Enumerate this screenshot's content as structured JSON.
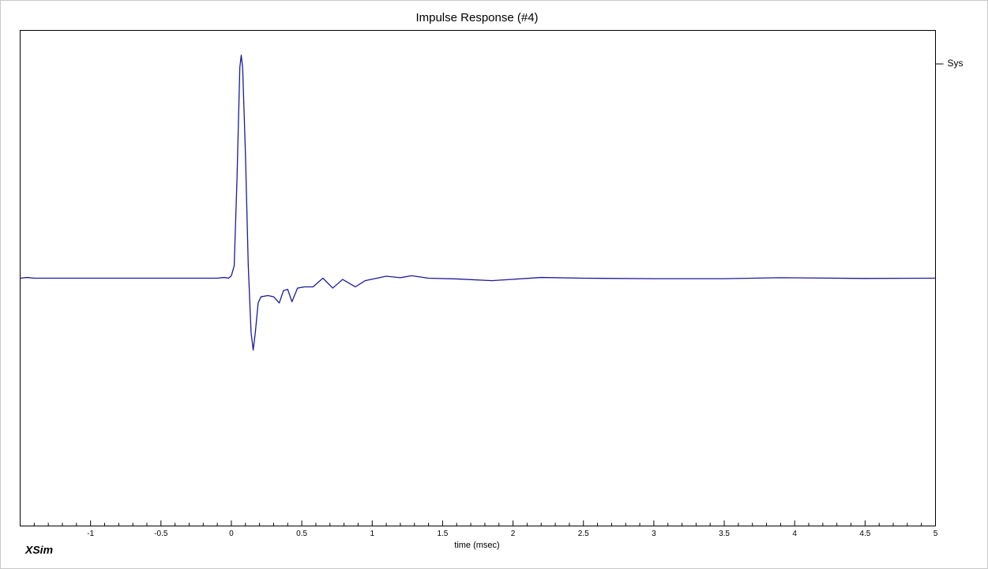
{
  "chart_data": {
    "type": "line",
    "title": "Impulse Response (#4)",
    "title_color": "#1a1a8c",
    "x_label": "time (msec)",
    "brand": "XSim",
    "brand_color": "#1f8a8a",
    "legend_position": "right",
    "x": [
      -1.5,
      -1.45,
      -1.4,
      -0.1,
      -0.05,
      -0.02,
      0.0,
      0.02,
      0.04,
      0.06,
      0.07,
      0.08,
      0.1,
      0.12,
      0.14,
      0.155,
      0.17,
      0.19,
      0.21,
      0.26,
      0.3,
      0.34,
      0.37,
      0.4,
      0.43,
      0.47,
      0.52,
      0.58,
      0.65,
      0.72,
      0.79,
      0.88,
      0.95,
      1.1,
      1.2,
      1.28,
      1.4,
      1.6,
      1.85,
      2.2,
      2.5,
      3.0,
      3.5,
      3.9,
      4.5,
      5.0
    ],
    "series": [
      {
        "name": "Sys",
        "color": "#1a1a9c",
        "values": [
          0,
          0.003,
          0,
          0,
          0.003,
          0,
          0.01,
          0.05,
          0.4,
          0.85,
          0.9,
          0.85,
          0.5,
          0.05,
          -0.22,
          -0.29,
          -0.22,
          -0.1,
          -0.075,
          -0.07,
          -0.075,
          -0.1,
          -0.05,
          -0.045,
          -0.095,
          -0.04,
          -0.035,
          -0.035,
          0.0,
          -0.04,
          -0.005,
          -0.035,
          -0.01,
          0.008,
          0.002,
          0.01,
          0.0,
          -0.003,
          -0.01,
          0.003,
          0.0,
          -0.002,
          -0.002,
          0.002,
          -0.001,
          0
        ]
      }
    ],
    "xlim": [
      -1.5,
      5
    ],
    "ylim": [
      -1,
      1
    ],
    "xticks": [
      -1,
      -0.5,
      0,
      0.5,
      1,
      1.5,
      2,
      2.5,
      3,
      3.5,
      4,
      4.5,
      5
    ],
    "xminorticks": [
      -1.4,
      -1.3,
      -1.2,
      -1.1,
      -0.9,
      -0.8,
      -0.7,
      -0.6,
      -0.4,
      -0.3,
      -0.2,
      -0.1,
      0.1,
      0.2,
      0.3,
      0.4,
      0.6,
      0.7,
      0.8,
      0.9,
      1.1,
      1.2,
      1.3,
      1.4,
      1.6,
      1.7,
      1.8,
      1.9,
      2.1,
      2.2,
      2.3,
      2.4,
      2.6,
      2.7,
      2.8,
      2.9,
      3.1,
      3.2,
      3.3,
      3.4,
      3.6,
      3.7,
      3.8,
      3.9,
      4.1,
      4.2,
      4.3,
      4.4,
      4.6,
      4.7,
      4.8,
      4.9
    ]
  }
}
